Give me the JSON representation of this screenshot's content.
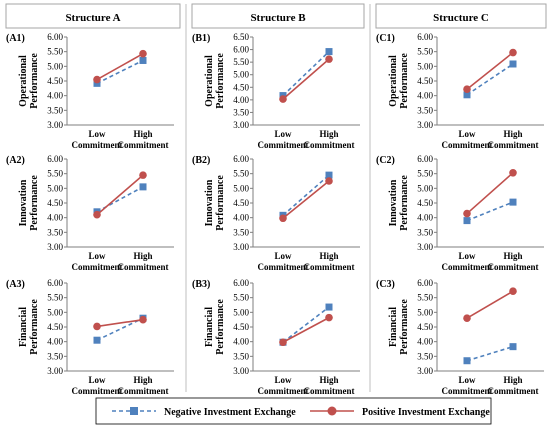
{
  "headers": [
    "Structure A",
    "Structure B",
    "Structure C"
  ],
  "legend": {
    "negative": "Negative Investment Exchange",
    "positive": "Positive Investment Exchange"
  },
  "colors": {
    "negative": "#4F81BD",
    "positive": "#C0504D",
    "axis": "#7f7f7f",
    "frame": "#a6a6a6"
  },
  "chart_data": [
    {
      "type": "line",
      "panel": "(A1)",
      "ylabel": "Operational Performance",
      "categories": [
        "Low Commitment",
        "High Commitment"
      ],
      "ylim": [
        3.0,
        6.0
      ],
      "yticks": [
        "3.00",
        "3.50",
        "4.00",
        "4.50",
        "5.00",
        "5.50",
        "6.00"
      ],
      "series": [
        {
          "name": "Negative Investment Exchange",
          "values": [
            4.42,
            5.2
          ]
        },
        {
          "name": "Positive Investment Exchange",
          "values": [
            4.55,
            5.43
          ]
        }
      ]
    },
    {
      "type": "line",
      "panel": "(B1)",
      "ylabel": "Operational Performance",
      "categories": [
        "Low Commitment",
        "High Commitment"
      ],
      "ylim": [
        3.0,
        6.5
      ],
      "yticks": [
        "3.00",
        "3.50",
        "4.00",
        "4.50",
        "5.00",
        "5.50",
        "6.00",
        "6.50"
      ],
      "series": [
        {
          "name": "Negative Investment Exchange",
          "values": [
            4.17,
            5.92
          ]
        },
        {
          "name": "Positive Investment Exchange",
          "values": [
            4.03,
            5.62
          ]
        }
      ]
    },
    {
      "type": "line",
      "panel": "(C1)",
      "ylabel": "Operational Performance",
      "categories": [
        "Low Commitment",
        "High Commitment"
      ],
      "ylim": [
        3.0,
        6.0
      ],
      "yticks": [
        "3.00",
        "3.50",
        "4.00",
        "4.50",
        "5.00",
        "5.50",
        "6.00"
      ],
      "series": [
        {
          "name": "Negative Investment Exchange",
          "values": [
            4.03,
            5.08
          ]
        },
        {
          "name": "Positive Investment Exchange",
          "values": [
            4.22,
            5.47
          ]
        }
      ]
    },
    {
      "type": "line",
      "panel": "(A2)",
      "ylabel": "Innovation Performance",
      "categories": [
        "Low Commitment",
        "High Commitment"
      ],
      "ylim": [
        3.0,
        6.0
      ],
      "yticks": [
        "3.00",
        "3.50",
        "4.00",
        "4.50",
        "5.00",
        "5.50",
        "6.00"
      ],
      "series": [
        {
          "name": "Negative Investment Exchange",
          "values": [
            4.2,
            5.05
          ]
        },
        {
          "name": "Positive Investment Exchange",
          "values": [
            4.1,
            5.45
          ]
        }
      ]
    },
    {
      "type": "line",
      "panel": "(B2)",
      "ylabel": "Innovation Performance",
      "categories": [
        "Low Commitment",
        "High Commitment"
      ],
      "ylim": [
        3.0,
        6.0
      ],
      "yticks": [
        "3.00",
        "3.50",
        "4.00",
        "4.50",
        "5.00",
        "5.50",
        "6.00"
      ],
      "series": [
        {
          "name": "Negative Investment Exchange",
          "values": [
            4.08,
            5.45
          ]
        },
        {
          "name": "Positive Investment Exchange",
          "values": [
            3.98,
            5.25
          ]
        }
      ]
    },
    {
      "type": "line",
      "panel": "(C2)",
      "ylabel": "Innovation Performance",
      "categories": [
        "Low Commitment",
        "High Commitment"
      ],
      "ylim": [
        3.0,
        6.0
      ],
      "yticks": [
        "3.00",
        "3.50",
        "4.00",
        "4.50",
        "5.00",
        "5.50",
        "6.00"
      ],
      "series": [
        {
          "name": "Negative Investment Exchange",
          "values": [
            3.9,
            4.53
          ]
        },
        {
          "name": "Positive Investment Exchange",
          "values": [
            4.14,
            5.53
          ]
        }
      ]
    },
    {
      "type": "line",
      "panel": "(A3)",
      "ylabel": "Financial Performance",
      "categories": [
        "Low Commitment",
        "High Commitment"
      ],
      "ylim": [
        3.0,
        6.0
      ],
      "yticks": [
        "3.00",
        "3.50",
        "4.00",
        "4.50",
        "5.00",
        "5.50",
        "6.00"
      ],
      "series": [
        {
          "name": "Negative Investment Exchange",
          "values": [
            4.05,
            4.8
          ]
        },
        {
          "name": "Positive Investment Exchange",
          "values": [
            4.52,
            4.75
          ]
        }
      ]
    },
    {
      "type": "line",
      "panel": "(B3)",
      "ylabel": "Financial Performance",
      "categories": [
        "Low Commitment",
        "High Commitment"
      ],
      "ylim": [
        3.0,
        6.0
      ],
      "yticks": [
        "3.00",
        "3.50",
        "4.00",
        "4.50",
        "5.00",
        "5.50",
        "6.00"
      ],
      "series": [
        {
          "name": "Negative Investment Exchange",
          "values": [
            3.98,
            5.18
          ]
        },
        {
          "name": "Positive Investment Exchange",
          "values": [
            3.98,
            4.82
          ]
        }
      ]
    },
    {
      "type": "line",
      "panel": "(C3)",
      "ylabel": "Financial Performance",
      "categories": [
        "Low Commitment",
        "High Commitment"
      ],
      "ylim": [
        3.0,
        6.0
      ],
      "yticks": [
        "3.00",
        "3.50",
        "4.00",
        "4.50",
        "5.00",
        "5.50",
        "6.00"
      ],
      "series": [
        {
          "name": "Negative Investment Exchange",
          "values": [
            3.35,
            3.83
          ]
        },
        {
          "name": "Positive Investment Exchange",
          "values": [
            4.8,
            5.72
          ]
        }
      ]
    }
  ]
}
